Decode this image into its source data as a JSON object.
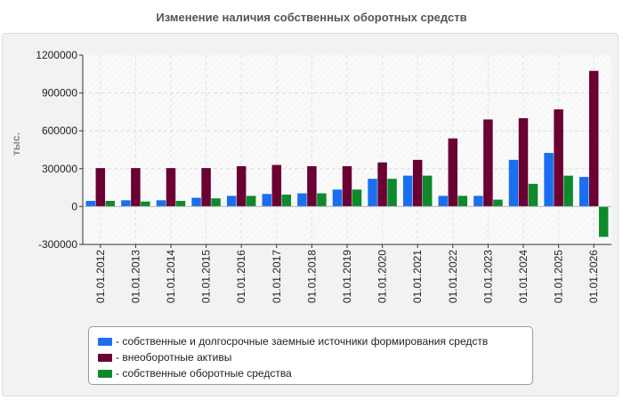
{
  "chart_data": {
    "type": "bar",
    "title": "Изменение наличия собственных оборотных средств",
    "ylabel": "тыс.",
    "xlabel": "",
    "ylim": [
      -300000,
      1200000
    ],
    "yticks": [
      1200000,
      900000,
      600000,
      300000,
      0,
      -300000
    ],
    "grid": true,
    "legend_position": "bottom",
    "categories": [
      "01.01.2012",
      "01.01.2013",
      "01.01.2014",
      "01.01.2015",
      "01.01.2016",
      "01.01.2017",
      "01.01.2018",
      "01.01.2019",
      "01.01.2020",
      "01.01.2021",
      "01.01.2022",
      "01.01.2023",
      "01.01.2024",
      "01.01.2025",
      "01.01.2026"
    ],
    "series": [
      {
        "name": "- собственные и долгосрочные заемные источники формирования средств",
        "color": "#1a6ff0",
        "values": [
          45000,
          50000,
          50000,
          70000,
          85000,
          100000,
          105000,
          135000,
          220000,
          245000,
          85000,
          85000,
          370000,
          425000,
          235000
        ]
      },
      {
        "name": "- внеоборотные активы",
        "color": "#6b0033",
        "values": [
          305000,
          305000,
          305000,
          305000,
          320000,
          330000,
          320000,
          320000,
          350000,
          370000,
          540000,
          690000,
          700000,
          770000,
          1075000
        ]
      },
      {
        "name": "- собственные оборотные средства",
        "color": "#0e8a2c",
        "values": [
          45000,
          40000,
          45000,
          65000,
          85000,
          95000,
          105000,
          135000,
          220000,
          245000,
          85000,
          55000,
          180000,
          245000,
          -240000
        ]
      }
    ]
  }
}
